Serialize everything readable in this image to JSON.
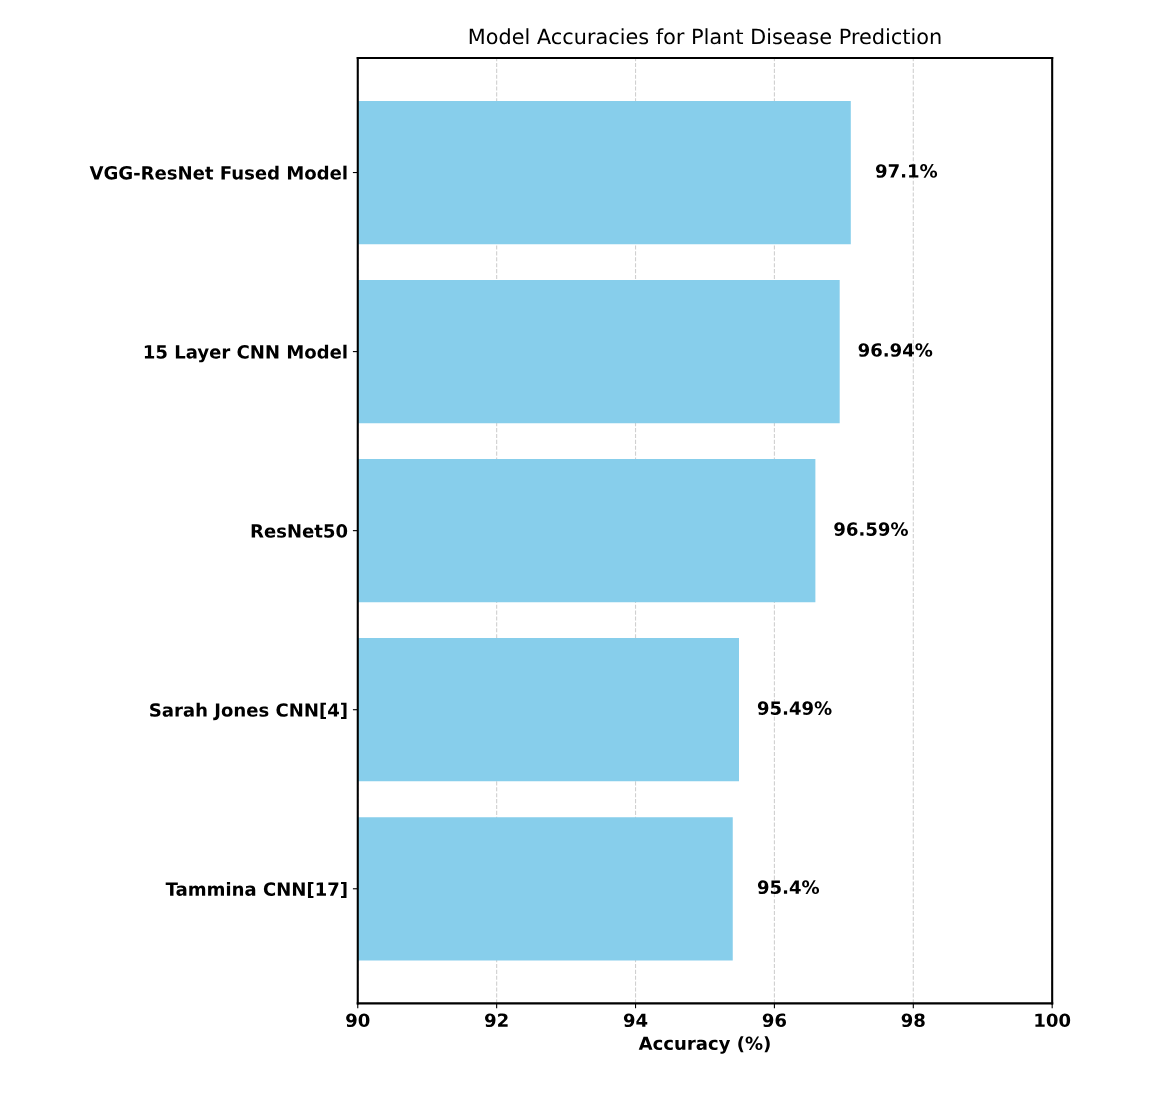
{
  "chart_data": {
    "type": "bar",
    "orientation": "horizontal",
    "title": "Model Accuracies for Plant Disease Prediction",
    "xlabel": "Accuracy (%)",
    "categories": [
      "VGG-ResNet Fused Model",
      "15 Layer CNN Model",
      "ResNet50",
      "Sarah Jones CNN[4]",
      "Tammina CNN[17]"
    ],
    "values": [
      97.1,
      96.94,
      96.59,
      95.49,
      95.4
    ],
    "value_labels": [
      "97.1%",
      "96.94%",
      "96.59%",
      "95.49%",
      "95.4%"
    ],
    "color": "#87ceeb",
    "xlim": [
      90,
      100
    ],
    "xticks": [
      90,
      92,
      94,
      96,
      98,
      100
    ],
    "grid": "x"
  }
}
